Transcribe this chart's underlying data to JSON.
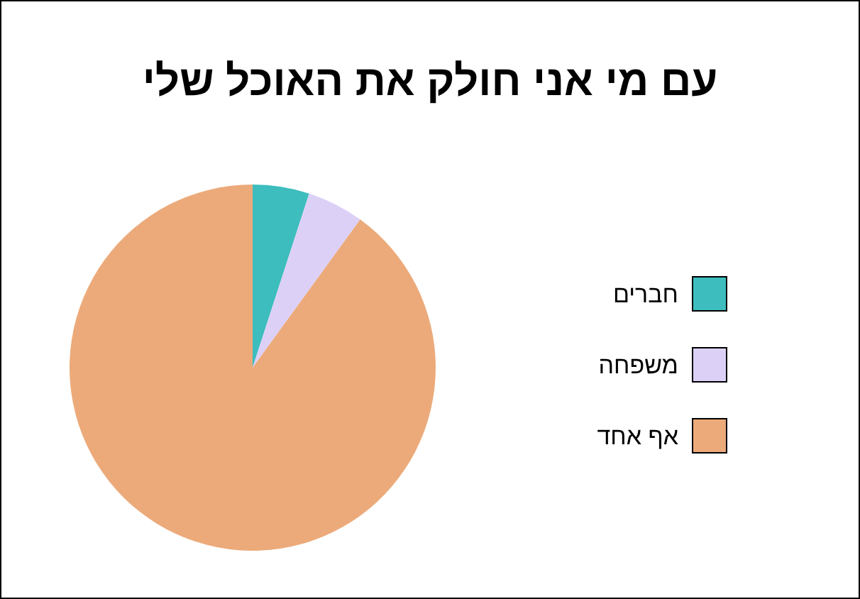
{
  "chart_data": {
    "type": "pie",
    "title": "עם מי אני חולק את האוכל שלי",
    "categories": [
      "חברים",
      "משפחה",
      "אף אחד"
    ],
    "values": [
      5,
      5,
      90
    ],
    "colors": [
      "#3dbdbd",
      "#dcd0f7",
      "#ecaa7a"
    ],
    "legend": "right"
  }
}
